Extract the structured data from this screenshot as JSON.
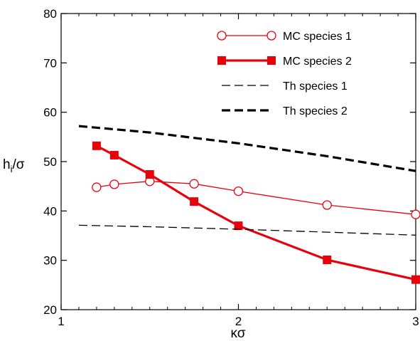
{
  "chart_data": {
    "type": "line",
    "xlabel": "κσ",
    "ylabel": "h",
    "ylabel_sub": "i",
    "ylabel_tail": "/σ",
    "xlim": [
      1,
      3
    ],
    "ylim": [
      20,
      80
    ],
    "x_ticks": [
      1,
      2,
      3
    ],
    "y_ticks": [
      20,
      30,
      40,
      50,
      60,
      70,
      80
    ],
    "x_tick_labels": [
      "1",
      "2",
      "3"
    ],
    "y_tick_labels": [
      "20",
      "30",
      "40",
      "50",
      "60",
      "70",
      "80"
    ],
    "grid": false,
    "legend_position": "top-right",
    "series": [
      {
        "name": "MC species 1",
        "color": "#e8000b",
        "marker": "open-circle",
        "line": "solid-thin",
        "points": [
          [
            1.2,
            44.8
          ],
          [
            1.3,
            45.4
          ],
          [
            1.5,
            46.0
          ],
          [
            1.75,
            45.5
          ],
          [
            2.0,
            44.0
          ],
          [
            2.5,
            41.2
          ],
          [
            3.0,
            39.3
          ]
        ]
      },
      {
        "name": "MC species 2",
        "color": "#e8000b",
        "marker": "filled-square",
        "line": "solid-thick",
        "points": [
          [
            1.2,
            53.2
          ],
          [
            1.3,
            51.3
          ],
          [
            1.5,
            47.4
          ],
          [
            1.75,
            41.9
          ],
          [
            2.0,
            37.0
          ],
          [
            2.5,
            30.1
          ],
          [
            3.0,
            26.1
          ]
        ]
      },
      {
        "name": "Th species 1",
        "color": "#000000",
        "marker": "none",
        "line": "dashed-thin",
        "points": [
          [
            1.1,
            37.1
          ],
          [
            1.5,
            36.8
          ],
          [
            2.0,
            36.3
          ],
          [
            2.5,
            35.7
          ],
          [
            3.0,
            35.1
          ]
        ]
      },
      {
        "name": "Th species 2",
        "color": "#000000",
        "marker": "none",
        "line": "dashed-thick",
        "points": [
          [
            1.1,
            57.2
          ],
          [
            1.5,
            55.9
          ],
          [
            2.0,
            53.7
          ],
          [
            2.5,
            51.1
          ],
          [
            3.0,
            48.1
          ]
        ]
      }
    ]
  }
}
